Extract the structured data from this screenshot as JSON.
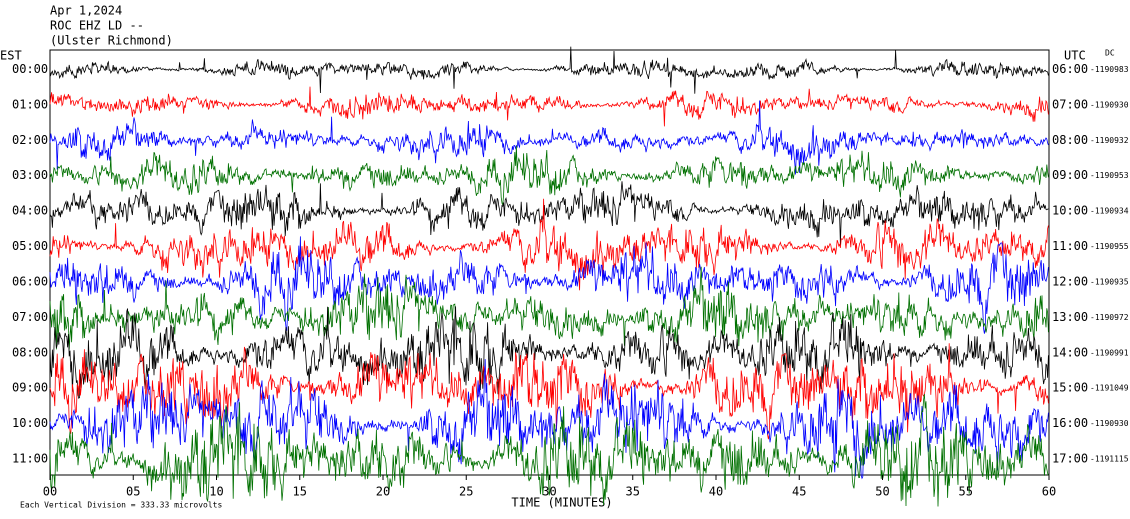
{
  "chart_data": {
    "type": "seismogram",
    "date": "Apr 1,2024",
    "station": "ROC EHZ LD --",
    "location": "(Ulster Richmond)",
    "left_axis_label": "EST",
    "right_axis_label": "UTC",
    "dc_label": "DC",
    "xlabel": "TIME (MINUTES)",
    "footnote": "Each Vertical Division =  333.33 microvolts",
    "xlim": [
      0,
      60
    ],
    "xticks": [
      {
        "value": 0,
        "label": "00"
      },
      {
        "value": 5,
        "label": "05"
      },
      10,
      15,
      20,
      25,
      30,
      35,
      40,
      45,
      50,
      55,
      60
    ],
    "est_labels": [
      "00:00",
      "01:00",
      "02:00",
      "03:00",
      "04:00",
      "05:00",
      "06:00",
      "07:00",
      "08:00",
      "09:00",
      "10:00",
      "11:00"
    ],
    "utc_labels": [
      "06:00",
      "07:00",
      "08:00",
      "09:00",
      "10:00",
      "11:00",
      "12:00",
      "13:00",
      "14:00",
      "15:00",
      "16:00",
      "17:00"
    ],
    "dc_values": [
      -1190983,
      -1190930,
      -1190932,
      -1190953,
      -1190934,
      -1190955,
      -1190935,
      -1190972,
      -1190991,
      -1191049,
      -1190930,
      -1191115
    ],
    "colors": [
      "#000000",
      "#ff0000",
      "#0000ff",
      "#007000"
    ]
  }
}
